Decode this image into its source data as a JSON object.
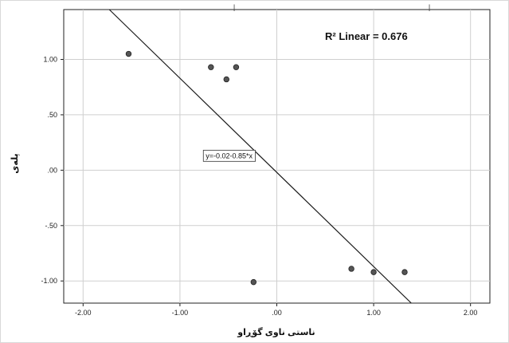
{
  "chart_data": {
    "type": "scatter",
    "xlabel": "ناستی ناوی گۆڕاو",
    "ylabel": "پلەی",
    "xlim": [
      -2.2,
      2.2
    ],
    "ylim": [
      -1.2,
      1.45
    ],
    "x_ticks": [
      -2.0,
      -1.0,
      0.0,
      1.0,
      2.0
    ],
    "x_tick_labels": [
      "-2.00",
      "-1.00",
      ".00",
      "1.00",
      "2.00"
    ],
    "y_ticks": [
      1.0,
      0.5,
      0.0,
      -0.5,
      -1.0
    ],
    "y_tick_labels": [
      "1.00",
      ".50",
      ".00",
      "-.50",
      "-1.00"
    ],
    "grid": true,
    "series": [
      {
        "points": [
          {
            "x": -1.53,
            "y": 1.05
          },
          {
            "x": -0.68,
            "y": 0.93
          },
          {
            "x": -0.52,
            "y": 0.82
          },
          {
            "x": -0.42,
            "y": 0.93
          },
          {
            "x": -0.24,
            "y": -1.01
          },
          {
            "x": 0.77,
            "y": -0.89
          },
          {
            "x": 1.0,
            "y": -0.92
          },
          {
            "x": 1.32,
            "y": -0.92
          }
        ],
        "color": "#555555"
      }
    ],
    "fit_line": {
      "intercept": -0.02,
      "slope": -0.85,
      "equation_label": "y=-0.02-0.85*x",
      "label_x": -0.52,
      "label_y": 0.13
    },
    "r2_label": "R² Linear = 0.676",
    "top_marks": [
      "|",
      "|"
    ]
  }
}
